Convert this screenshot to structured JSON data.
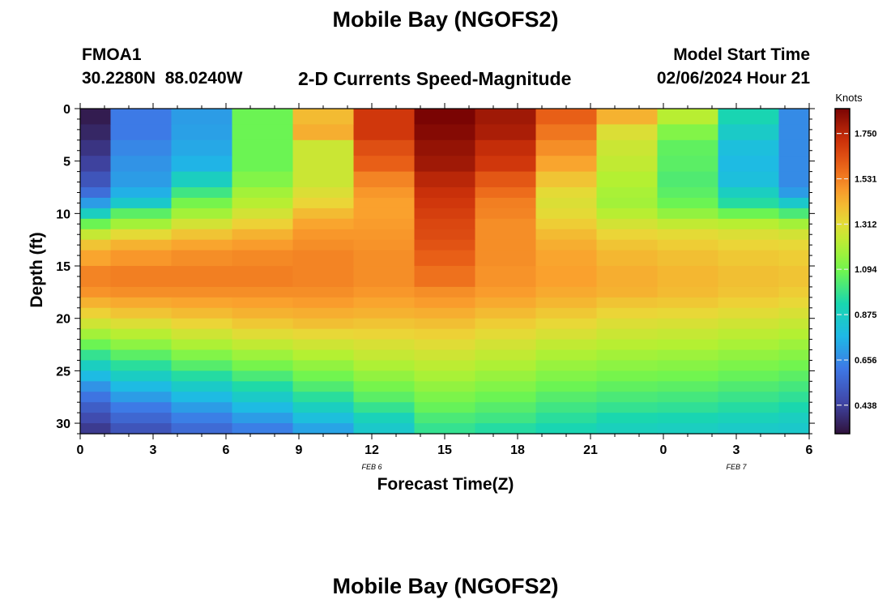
{
  "header": {
    "title": "Mobile Bay (NGOFS2)",
    "title_repeat": "Mobile Bay (NGOFS2)",
    "station_id": "FMOA1",
    "station_coords": "30.2280N  88.0240W",
    "subtitle": "2-D Currents Speed-Magnitude",
    "model_start_label": "Model Start Time",
    "model_start_value": "02/06/2024 Hour 21"
  },
  "chart_data": {
    "type": "heatmap",
    "title": "Mobile Bay (NGOFS2)",
    "subtitle": "2-D Currents Speed-Magnitude",
    "xlabel": "Forecast Time(Z)",
    "ylabel": "Depth (ft)",
    "x_hours": [
      0,
      30
    ],
    "x_tick_labels": [
      "0",
      "3",
      "6",
      "9",
      "12",
      "15",
      "18",
      "21",
      "0",
      "3",
      "6"
    ],
    "x_date_labels": [
      {
        "label": "FEB 6",
        "hour": 12
      },
      {
        "label": "FEB 7",
        "hour": 27
      }
    ],
    "ylim": [
      0,
      31
    ],
    "y_ticks": [
      0,
      5,
      10,
      15,
      20,
      25,
      30
    ],
    "colorbar": {
      "title": "Knots",
      "ticks": [
        "1.750",
        "1.531",
        "1.312",
        "1.094",
        "0.875",
        "0.656",
        "0.438"
      ],
      "tick_values": [
        1.75,
        1.531,
        1.312,
        1.094,
        0.875,
        0.656,
        0.438
      ],
      "range": [
        0.3,
        1.87
      ]
    },
    "column_hours": [
      0,
      1.25,
      3.75,
      6.25,
      8.75,
      11.25,
      13.75,
      16.25,
      18.75,
      21.25,
      23.75,
      26.25,
      28.75,
      30
    ],
    "depth_bins": [
      0,
      1.5,
      3,
      4.5,
      6,
      7.5,
      8.5,
      9.5,
      10.5,
      11.5,
      12.5,
      13.5,
      15,
      17,
      18,
      19,
      20,
      21,
      22,
      23,
      24,
      25,
      26,
      27,
      28,
      29,
      30,
      31
    ],
    "speed_knots": [
      [
        0.33,
        0.62,
        0.7,
        1.08,
        1.4,
        1.7,
        1.87,
        1.8,
        1.6,
        1.42,
        1.22,
        0.92,
        0.66
      ],
      [
        0.36,
        0.62,
        0.71,
        1.08,
        1.43,
        1.7,
        1.85,
        1.78,
        1.55,
        1.3,
        1.12,
        0.86,
        0.66
      ],
      [
        0.4,
        0.65,
        0.73,
        1.08,
        1.26,
        1.64,
        1.82,
        1.73,
        1.5,
        1.26,
        1.06,
        0.8,
        0.66
      ],
      [
        0.44,
        0.68,
        0.76,
        1.08,
        1.26,
        1.6,
        1.8,
        1.7,
        1.45,
        1.24,
        1.05,
        0.78,
        0.66
      ],
      [
        0.5,
        0.7,
        0.88,
        1.12,
        1.26,
        1.52,
        1.75,
        1.62,
        1.38,
        1.21,
        1.03,
        0.8,
        0.66
      ],
      [
        0.58,
        0.75,
        1.0,
        1.18,
        1.3,
        1.48,
        1.72,
        1.57,
        1.32,
        1.19,
        1.05,
        0.88,
        0.7
      ],
      [
        0.7,
        0.85,
        1.1,
        1.22,
        1.34,
        1.46,
        1.7,
        1.53,
        1.3,
        1.18,
        1.08,
        0.95,
        0.85
      ],
      [
        0.88,
        1.05,
        1.18,
        1.28,
        1.4,
        1.46,
        1.68,
        1.52,
        1.32,
        1.22,
        1.15,
        1.08,
        1.02
      ],
      [
        1.08,
        1.18,
        1.28,
        1.35,
        1.45,
        1.47,
        1.66,
        1.5,
        1.36,
        1.28,
        1.24,
        1.22,
        1.18
      ],
      [
        1.25,
        1.32,
        1.38,
        1.42,
        1.48,
        1.48,
        1.65,
        1.5,
        1.4,
        1.34,
        1.32,
        1.3,
        1.28
      ],
      [
        1.38,
        1.42,
        1.45,
        1.47,
        1.5,
        1.49,
        1.63,
        1.5,
        1.43,
        1.38,
        1.36,
        1.34,
        1.33
      ],
      [
        1.45,
        1.48,
        1.5,
        1.51,
        1.52,
        1.5,
        1.6,
        1.5,
        1.45,
        1.41,
        1.39,
        1.37,
        1.36
      ],
      [
        1.52,
        1.53,
        1.53,
        1.53,
        1.52,
        1.5,
        1.56,
        1.49,
        1.46,
        1.43,
        1.41,
        1.39,
        1.38
      ],
      [
        1.49,
        1.5,
        1.5,
        1.5,
        1.5,
        1.48,
        1.5,
        1.47,
        1.44,
        1.42,
        1.4,
        1.38,
        1.36
      ],
      [
        1.42,
        1.44,
        1.45,
        1.46,
        1.47,
        1.45,
        1.47,
        1.44,
        1.41,
        1.38,
        1.37,
        1.35,
        1.33
      ],
      [
        1.35,
        1.38,
        1.4,
        1.42,
        1.43,
        1.42,
        1.43,
        1.4,
        1.37,
        1.34,
        1.33,
        1.31,
        1.29
      ],
      [
        1.27,
        1.3,
        1.34,
        1.37,
        1.39,
        1.38,
        1.39,
        1.36,
        1.33,
        1.3,
        1.29,
        1.27,
        1.25
      ],
      [
        1.18,
        1.22,
        1.27,
        1.31,
        1.33,
        1.34,
        1.35,
        1.32,
        1.29,
        1.26,
        1.25,
        1.23,
        1.21
      ],
      [
        1.08,
        1.14,
        1.2,
        1.24,
        1.27,
        1.29,
        1.31,
        1.28,
        1.24,
        1.22,
        1.21,
        1.19,
        1.17
      ],
      [
        0.98,
        1.05,
        1.12,
        1.17,
        1.21,
        1.25,
        1.27,
        1.24,
        1.2,
        1.18,
        1.17,
        1.15,
        1.13
      ],
      [
        0.88,
        0.96,
        1.04,
        1.1,
        1.15,
        1.2,
        1.23,
        1.2,
        1.16,
        1.14,
        1.13,
        1.11,
        1.09
      ],
      [
        0.78,
        0.87,
        0.95,
        1.02,
        1.09,
        1.15,
        1.19,
        1.16,
        1.12,
        1.1,
        1.09,
        1.07,
        1.05
      ],
      [
        0.68,
        0.78,
        0.86,
        0.94,
        1.03,
        1.1,
        1.15,
        1.12,
        1.08,
        1.06,
        1.05,
        1.03,
        1.01
      ],
      [
        0.6,
        0.7,
        0.78,
        0.86,
        0.96,
        1.05,
        1.11,
        1.08,
        1.04,
        1.02,
        1.01,
        0.99,
        0.97
      ],
      [
        0.53,
        0.62,
        0.7,
        0.78,
        0.88,
        0.98,
        1.07,
        1.04,
        1.0,
        0.98,
        0.97,
        0.95,
        0.93
      ],
      [
        0.47,
        0.56,
        0.63,
        0.7,
        0.8,
        0.9,
        1.02,
        1.0,
        0.96,
        0.93,
        0.92,
        0.9,
        0.88
      ],
      [
        0.42,
        0.5,
        0.57,
        0.63,
        0.72,
        0.85,
        0.98,
        0.95,
        0.92,
        0.89,
        0.88,
        0.86,
        0.85
      ]
    ]
  }
}
